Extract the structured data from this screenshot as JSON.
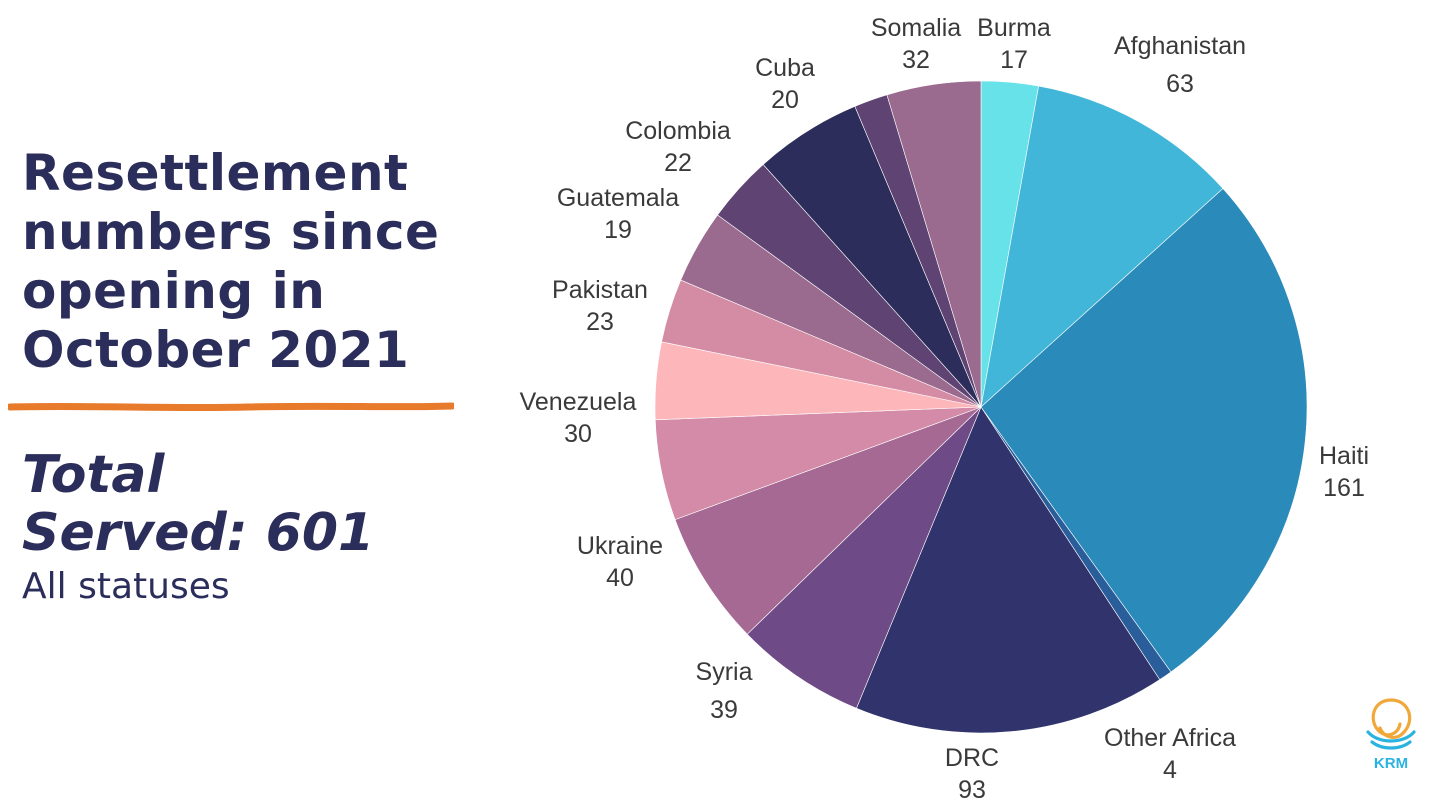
{
  "title": "Resettlement numbers since opening in October 2021",
  "total_line1": "Total",
  "total_line2": "Served: 601",
  "subtitle": "All statuses",
  "logo_text": "KRM",
  "chart_data": {
    "type": "pie",
    "title": "Resettlement numbers since opening in October 2021",
    "total": 601,
    "start": "12 o'clock",
    "direction": "clockwise",
    "slices": [
      {
        "label": "Burma",
        "value": 17,
        "color": "#67e2e8"
      },
      {
        "label": "Afghanistan",
        "value": 63,
        "color": "#41b6d8"
      },
      {
        "label": "Haiti",
        "value": 161,
        "color": "#2a8bbb"
      },
      {
        "label": "Other Africa",
        "value": 4,
        "color": "#2a5e9b"
      },
      {
        "label": "DRC",
        "value": 93,
        "color": "#31346c"
      },
      {
        "label": "Syria",
        "value": 39,
        "color": "#6e4a86"
      },
      {
        "label": "Ukraine",
        "value": 40,
        "color": "#a56994"
      },
      {
        "label": "Venezuela",
        "value": 30,
        "color": "#d48ba8"
      },
      {
        "label": "Pakistan",
        "value": 23,
        "color": "#fdb7bb"
      },
      {
        "label": "Guatemala",
        "value": 19,
        "color": "#d48ba4"
      },
      {
        "label": "Colombia",
        "value": 22,
        "color": "#9a6a8f"
      },
      {
        "label": "Cuba",
        "value": 20,
        "color": "#5e4373"
      },
      {
        "label": "Somalia",
        "value": 32,
        "color": "#2c2d5a"
      },
      {
        "label": "",
        "value": 10,
        "color": "#5e4373"
      },
      {
        "label": "",
        "value": 28,
        "color": "#9b6a8f"
      }
    ],
    "accent_color": "#e87a2c",
    "text_color": "#2b2d5a"
  }
}
